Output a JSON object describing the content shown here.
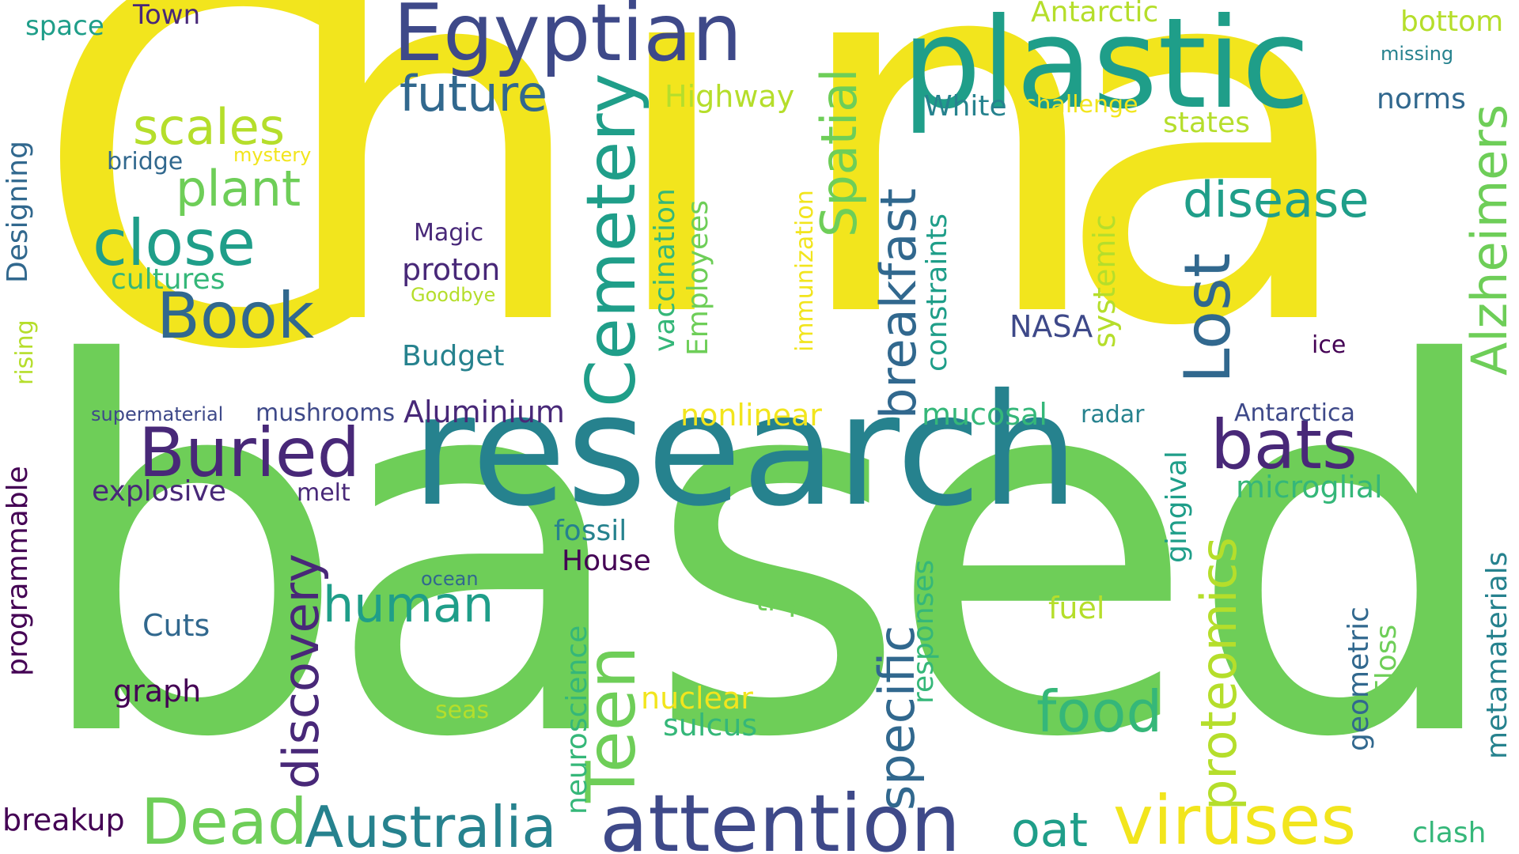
{
  "palette": {
    "yellow": "#f2e51d",
    "lime": "#6ece58",
    "green": "#35b779",
    "teal_green": "#1f9e89",
    "teal": "#26828e",
    "blue": "#31688e",
    "indigo": "#3e4989",
    "purple": "#482878",
    "dark": "#440154",
    "light_green": "#b5de2b"
  },
  "words": {
    "china_c": "C",
    "china_h": "h",
    "china_i": "i",
    "china_n": "n",
    "china_a": "a",
    "based_b": "b",
    "based_a": "a",
    "based_s": "s",
    "based_e": "e",
    "based_d": "d",
    "research": "research",
    "plastic": "plastic",
    "egyptian": "Egyptian",
    "future": "future",
    "scales": "scales",
    "plant": "plant",
    "close": "close",
    "cultures": "cultures",
    "book": "Book",
    "buried": "Buried",
    "explosive": "explosive",
    "supermaterial": "supermaterial",
    "mushrooms": "mushrooms",
    "aluminium": "Aluminium",
    "magic": "Magic",
    "proton": "proton",
    "goodbye": "Goodbye",
    "budget": "Budget",
    "bridge": "bridge",
    "mystery": "mystery",
    "space": "space",
    "town": "Town",
    "highway": "Highway",
    "antarctic": "Antarctic",
    "bottom": "bottom",
    "missing": "missing",
    "white": "White",
    "challenge": "challenge",
    "states": "states",
    "norms": "norms",
    "disease": "disease",
    "nasa": "NASA",
    "ice": "ice",
    "radar": "radar",
    "antarctica": "Antarctica",
    "mucosal": "mucosal",
    "nonlinear": "nonlinear",
    "bats": "bats",
    "microglial": "microglial",
    "melt": "melt",
    "fossil": "fossil",
    "house": "House",
    "ocean": "ocean",
    "human": "human",
    "cuts": "Cuts",
    "graph": "graph",
    "triple": "triple",
    "fuel": "fuel",
    "nuclear": "nuclear",
    "seas": "seas",
    "sulcus": "sulcus",
    "food": "food",
    "breakup": "breakup",
    "dead": "Dead",
    "australia": "Australia",
    "attention": "attention",
    "oat": "oat",
    "viruses": "viruses",
    "clash": "clash",
    "cemetery": "Cemetery",
    "spatial": "Spatial",
    "breakfast": "breakfast",
    "lost": "Lost",
    "alzheimers": "Alzheimers",
    "designing": "Designing",
    "rising": "rising",
    "programmable": "programmable",
    "discovery": "discovery",
    "teen": "Teen",
    "neuroscience": "neuroscience",
    "vaccination": "vaccination",
    "employees": "Employees",
    "immunization": "immunization",
    "constraints": "constraints",
    "systemic": "systemic",
    "specific": "specific",
    "responses": "responses",
    "proteomics": "proteomics",
    "gingival": "gingival",
    "geometric": "geometric",
    "floss": "Floss",
    "metamaterials": "metamaterials"
  }
}
